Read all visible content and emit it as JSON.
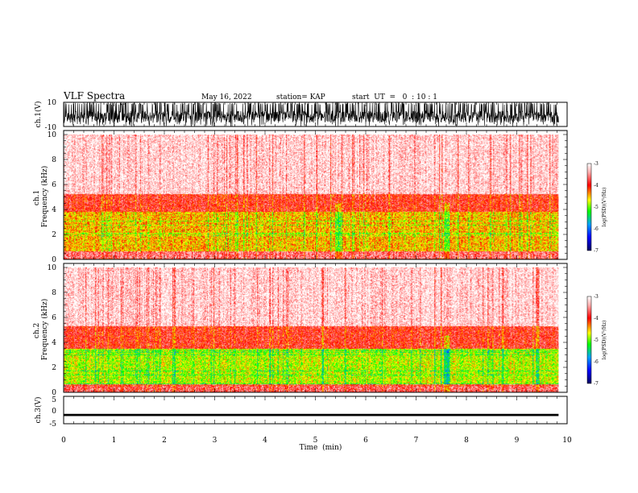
{
  "header": {
    "title": "VLF Spectra",
    "date": "May 16, 2022",
    "station": "station= KAP",
    "start": "start  UT  =   0  : 10 : 1"
  },
  "chart_data": [
    {
      "type": "line",
      "panel": "ch1-waveform",
      "ylabel": "ch.1(V)",
      "ylim": [
        -10,
        10
      ],
      "yticks": [
        "10",
        "-10"
      ],
      "xlim": [
        0,
        10
      ],
      "data_end_min": 9.83,
      "series": [
        {
          "value_range": [
            -10,
            10
          ],
          "typical_level": -2,
          "color": "#000000"
        }
      ]
    },
    {
      "type": "heatmap",
      "panel": "ch1-spectrogram",
      "ylabel": "ch.1\nFrequency  (kHz)",
      "ylim": [
        0,
        10
      ],
      "yticks": [
        "0",
        "2",
        "4",
        "6",
        "8",
        "10"
      ],
      "xlim": [
        0,
        10
      ],
      "data_end_min": 9.83,
      "colorbar": {
        "label": "log(PSD)(V²/Hz)",
        "range": [
          -7,
          -3
        ],
        "ticks": [
          "-3",
          "-4",
          "-5",
          "-6",
          "-7"
        ]
      },
      "bands_kHz": [
        {
          "from": 0,
          "to": 0.6,
          "log_psd": -3.6
        },
        {
          "from": 0.6,
          "to": 3.8,
          "log_psd": -4.5
        },
        {
          "from": 3.8,
          "to": 5.2,
          "log_psd": -3.9
        },
        {
          "from": 5.2,
          "to": 10,
          "log_psd": -3.2
        }
      ],
      "vertical_dark_streaks_min": [
        5.45,
        7.6
      ]
    },
    {
      "type": "heatmap",
      "panel": "ch2-spectrogram",
      "ylabel": "ch.2\nFrequency  (kHz)",
      "ylim": [
        0,
        10
      ],
      "yticks": [
        "0",
        "2",
        "4",
        "6",
        "8",
        "10"
      ],
      "xlim": [
        0,
        10
      ],
      "data_end_min": 9.83,
      "colorbar": {
        "label": "log(PSD)(V²/Hz)",
        "range": [
          -7,
          -3
        ],
        "ticks": [
          "-3",
          "-4",
          "-5",
          "-6",
          "-7"
        ]
      },
      "bands_kHz": [
        {
          "from": 0,
          "to": 0.6,
          "log_psd": -3.7
        },
        {
          "from": 0.6,
          "to": 3.5,
          "log_psd": -4.8
        },
        {
          "from": 3.5,
          "to": 5.3,
          "log_psd": -3.9
        },
        {
          "from": 5.3,
          "to": 10,
          "log_psd": -3.2
        }
      ],
      "vertical_dark_streaks_min": [
        7.6
      ]
    },
    {
      "type": "line",
      "panel": "ch3-waveform",
      "ylabel": "ch.3(V)",
      "ylim": [
        -5,
        5
      ],
      "yticks": [
        "5",
        "0",
        "-5"
      ],
      "xlim": [
        0,
        10
      ],
      "data_end_min": 9.83,
      "series": [
        {
          "value_range": [
            -2.2,
            -1.4
          ],
          "typical_level": -1.8,
          "color": "#000000"
        }
      ]
    }
  ],
  "x_axis": {
    "label": "Time  (min)",
    "ticks": [
      "0",
      "1",
      "2",
      "3",
      "4",
      "5",
      "6",
      "7",
      "8",
      "9",
      "10"
    ]
  }
}
